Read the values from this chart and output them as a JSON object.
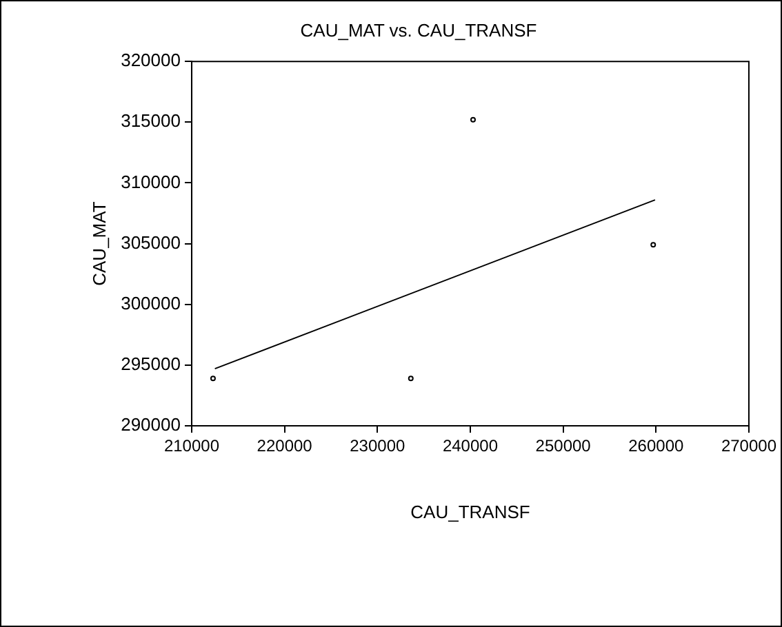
{
  "chart_data": {
    "type": "scatter",
    "title": "CAU_MAT vs. CAU_TRANSF",
    "xlabel": "CAU_TRANSF",
    "ylabel": "CAU_MAT",
    "series": [
      {
        "type": "scatter",
        "marker": "circle",
        "color": "#000000",
        "x": [
          212300,
          233600,
          240300,
          259700
        ],
        "values": [
          293900,
          293900,
          315200,
          304900
        ]
      },
      {
        "type": "line",
        "marker": "none",
        "color": "#000000",
        "x": [
          212500,
          259900
        ],
        "values": [
          294700,
          308600
        ]
      }
    ],
    "xlim": [
      210000,
      270000
    ],
    "xticks": [
      210000,
      220000,
      230000,
      240000,
      250000,
      260000,
      270000
    ],
    "ylim": [
      290000,
      320000
    ],
    "yticks": [
      290000,
      295000,
      300000,
      305000,
      310000,
      315000,
      320000
    ],
    "grid": false,
    "legend": false,
    "line_style": "solid"
  }
}
